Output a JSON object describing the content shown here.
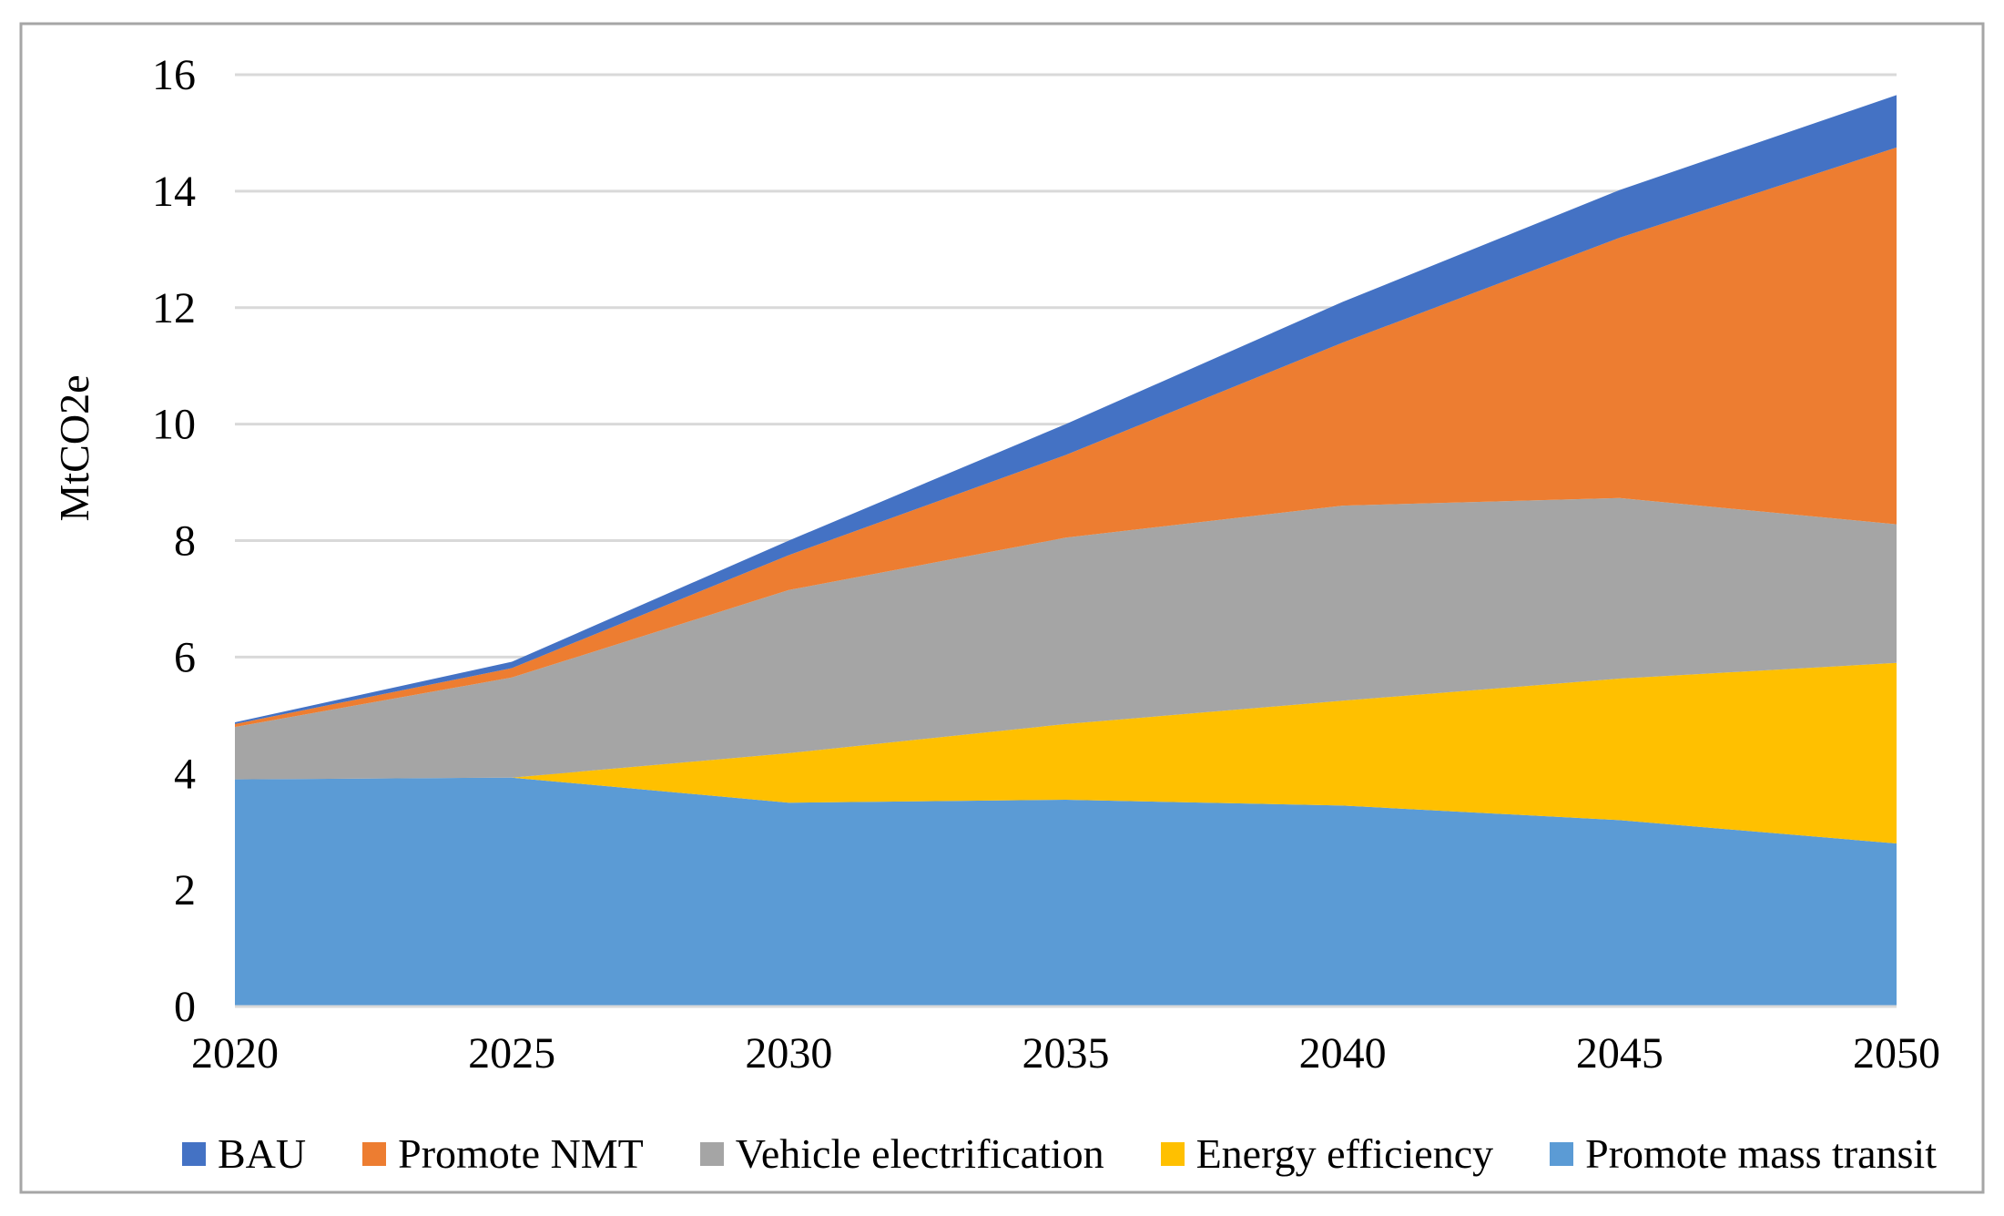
{
  "figure": {
    "background": "#FFFFFF",
    "border_color": "#A6A6A6",
    "text_color": "#000000"
  },
  "chart_data": {
    "type": "area",
    "stacked": true,
    "title": "",
    "xlabel": "",
    "ylabel": "MtCO2e",
    "unit": "MtCO2e",
    "x": [
      2020,
      2025,
      2030,
      2035,
      2040,
      2045,
      2050
    ],
    "x_tick_labels": [
      "2020",
      "2025",
      "2030",
      "2035",
      "2040",
      "2045",
      "2050"
    ],
    "ylim": [
      0,
      16
    ],
    "y_ticks": [
      0,
      2,
      4,
      6,
      8,
      10,
      12,
      14,
      16
    ],
    "y_tick_labels": [
      "0",
      "2",
      "4",
      "6",
      "8",
      "10",
      "12",
      "14",
      "16"
    ],
    "grid": "horizontal",
    "gridline_color": "#D9D9D9",
    "legend_position": "bottom",
    "stack_order_note": "series listed bottom-to-top; legend displays top-to-bottom (reverse order)",
    "series": [
      {
        "name": "Promote mass transit",
        "color": "#5B9BD5",
        "values": [
          3.9,
          3.93,
          3.5,
          3.55,
          3.45,
          3.2,
          2.8
        ]
      },
      {
        "name": "Energy efficiency",
        "color": "#FFC000",
        "values": [
          0.0,
          0.0,
          0.85,
          1.3,
          1.8,
          2.43,
          3.1
        ]
      },
      {
        "name": "Vehicle electrification",
        "color": "#A5A5A5",
        "values": [
          0.9,
          1.72,
          2.8,
          3.2,
          3.35,
          3.1,
          2.38
        ]
      },
      {
        "name": "Promote NMT",
        "color": "#ED7D31",
        "values": [
          0.05,
          0.16,
          0.6,
          1.42,
          2.8,
          4.47,
          6.47
        ]
      },
      {
        "name": "BAU",
        "color": "#4472C4",
        "values": [
          0.03,
          0.11,
          0.25,
          0.53,
          0.7,
          0.82,
          0.9
        ]
      }
    ],
    "cumulative_totals": [
      4.88,
      5.92,
      8.0,
      10.0,
      12.1,
      14.02,
      15.65
    ]
  }
}
